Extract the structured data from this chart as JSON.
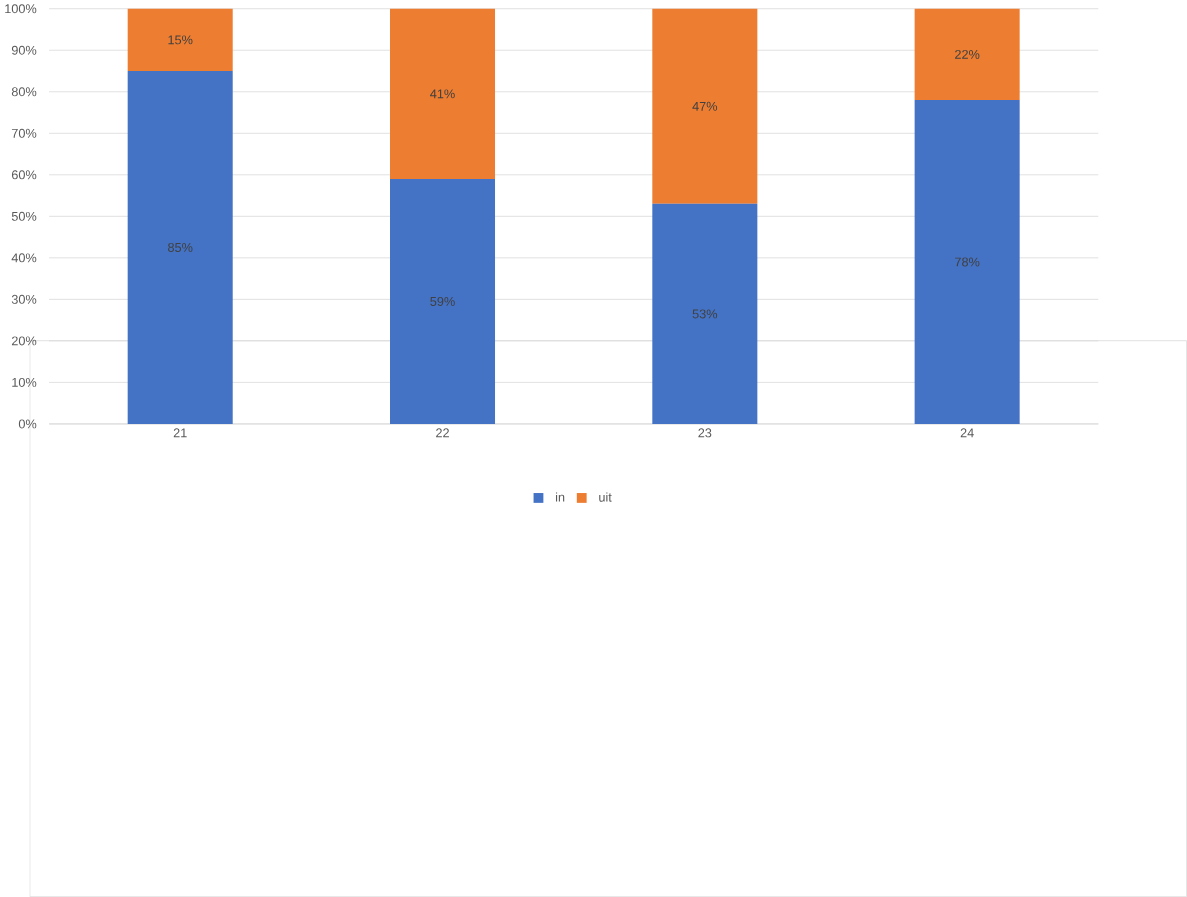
{
  "chart_data": {
    "type": "bar",
    "stacked": true,
    "categories": [
      "21",
      "22",
      "23",
      "24"
    ],
    "series": [
      {
        "name": "in",
        "color": "#4472c4",
        "values": [
          85,
          59,
          53,
          78
        ],
        "value_labels": [
          "85%",
          "59%",
          "53%",
          "78%"
        ]
      },
      {
        "name": "uit",
        "color": "#ed7d31",
        "values": [
          15,
          41,
          47,
          22
        ],
        "value_labels": [
          "15%",
          "41%",
          "47%",
          "22%"
        ]
      }
    ],
    "ylim": [
      0,
      100
    ],
    "yticks": [
      {
        "value": 0,
        "label": "0%"
      },
      {
        "value": 10,
        "label": "10%"
      },
      {
        "value": 20,
        "label": "20%"
      },
      {
        "value": 30,
        "label": "30%"
      },
      {
        "value": 40,
        "label": "40%"
      },
      {
        "value": 50,
        "label": "50%"
      },
      {
        "value": 60,
        "label": "60%"
      },
      {
        "value": 70,
        "label": "70%"
      },
      {
        "value": 80,
        "label": "80%"
      },
      {
        "value": 90,
        "label": "90%"
      },
      {
        "value": 100,
        "label": "100%"
      }
    ],
    "grid": "y",
    "legend": "bottom"
  }
}
